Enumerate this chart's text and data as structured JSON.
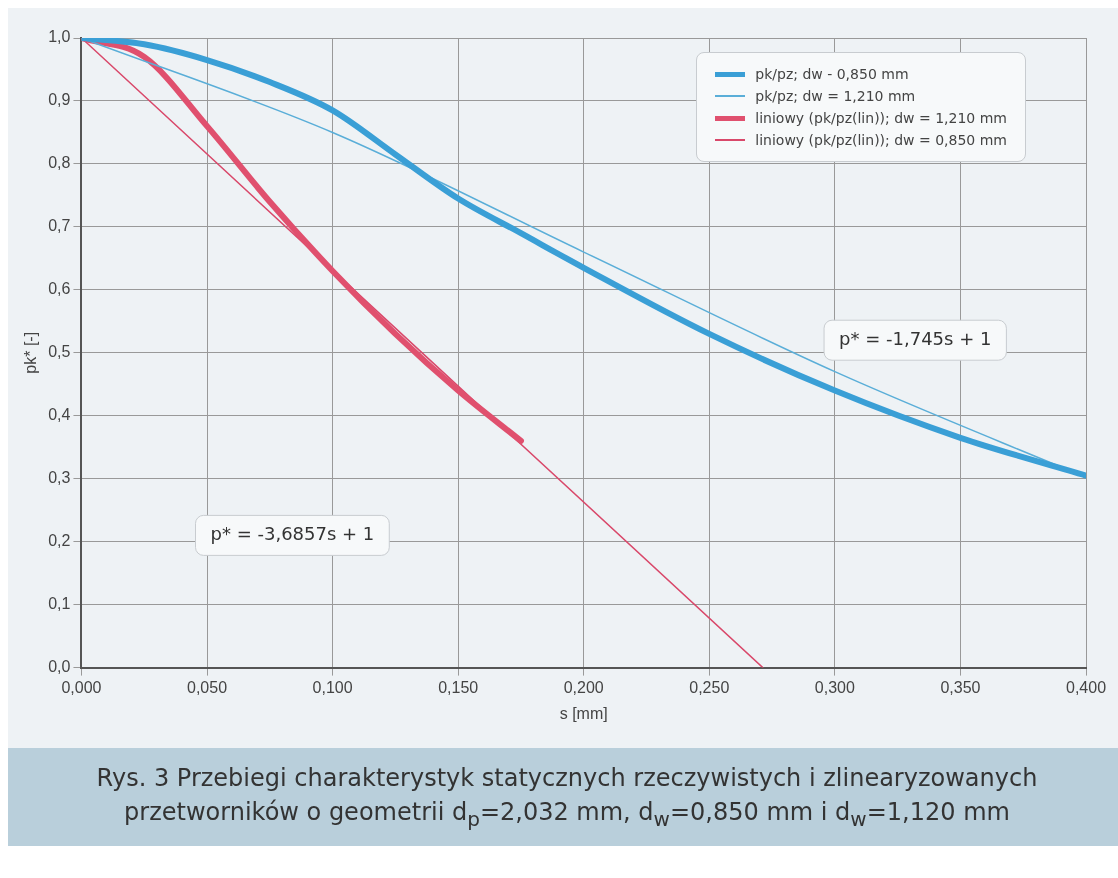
{
  "chart_data": {
    "type": "line",
    "xlabel": "s [mm]",
    "ylabel": "pk* [-]",
    "xlim": [
      0,
      0.4
    ],
    "ylim": [
      0,
      1
    ],
    "xticks": [
      {
        "value": 0,
        "label": "0,000"
      },
      {
        "value": 0.05,
        "label": "0,050"
      },
      {
        "value": 0.1,
        "label": "0,100"
      },
      {
        "value": 0.15,
        "label": "0,150"
      },
      {
        "value": 0.2,
        "label": "0,200"
      },
      {
        "value": 0.25,
        "label": "0,250"
      },
      {
        "value": 0.3,
        "label": "0,300"
      },
      {
        "value": 0.35,
        "label": "0,350"
      },
      {
        "value": 0.4,
        "label": "0,400"
      }
    ],
    "yticks": [
      {
        "value": 0,
        "label": "0,0"
      },
      {
        "value": 0.1,
        "label": "0,1"
      },
      {
        "value": 0.2,
        "label": "0,2"
      },
      {
        "value": 0.3,
        "label": "0,3"
      },
      {
        "value": 0.4,
        "label": "0,4"
      },
      {
        "value": 0.5,
        "label": "0,5"
      },
      {
        "value": 0.6,
        "label": "0,6"
      },
      {
        "value": 0.7,
        "label": "0,7"
      },
      {
        "value": 0.8,
        "label": "0,8"
      },
      {
        "value": 0.9,
        "label": "0,9"
      },
      {
        "value": 1,
        "label": "1,0"
      }
    ],
    "series": [
      {
        "name": "pk/pz; dw - 0,850 mm",
        "color": "#3a9fd6",
        "x": [
          0,
          0.025,
          0.05,
          0.075,
          0.1,
          0.125,
          0.15,
          0.175,
          0.2,
          0.25,
          0.3,
          0.35,
          0.4
        ],
        "values": [
          1,
          0.99,
          0.965,
          0.93,
          0.885,
          0.815,
          0.745,
          0.69,
          0.635,
          0.53,
          0.44,
          0.365,
          0.305
        ]
      },
      {
        "name": "pk/pz; dw = 1,210 mm",
        "color": "#5aaed8",
        "x": [
          0,
          0.1,
          0.2,
          0.3,
          0.4
        ],
        "values": [
          1,
          0.85,
          0.66,
          0.47,
          0.302
        ]
      },
      {
        "name": "liniowy (pk/pz(lin)); dw = 1,210 mm",
        "color": "#e0506e",
        "x": [
          0,
          0.025,
          0.05,
          0.075,
          0.1,
          0.125,
          0.15,
          0.175
        ],
        "values": [
          1,
          0.97,
          0.86,
          0.74,
          0.63,
          0.53,
          0.44,
          0.36
        ]
      },
      {
        "name": "liniowy (pk/pz(lin)); dw = 0,850 mm",
        "color": "#d9486a",
        "x": [
          0,
          0.2713
        ],
        "values": [
          1,
          0
        ]
      }
    ],
    "legend": "top right",
    "grid": true,
    "marker": "none",
    "line_style": "solid",
    "annotations": [
      "p* = -1,745s + 1",
      "p* = -3,6857s + 1",
      "Rys. 3 Przebiegi charakterystyk statycznych rzeczywistych i zlinearyzowanych przetworników o geometrii d$_{p}$=2,032 mm, d$_{w}$=0,850 mm i d$_{w}$=1,120 mm"
    ]
  }
}
